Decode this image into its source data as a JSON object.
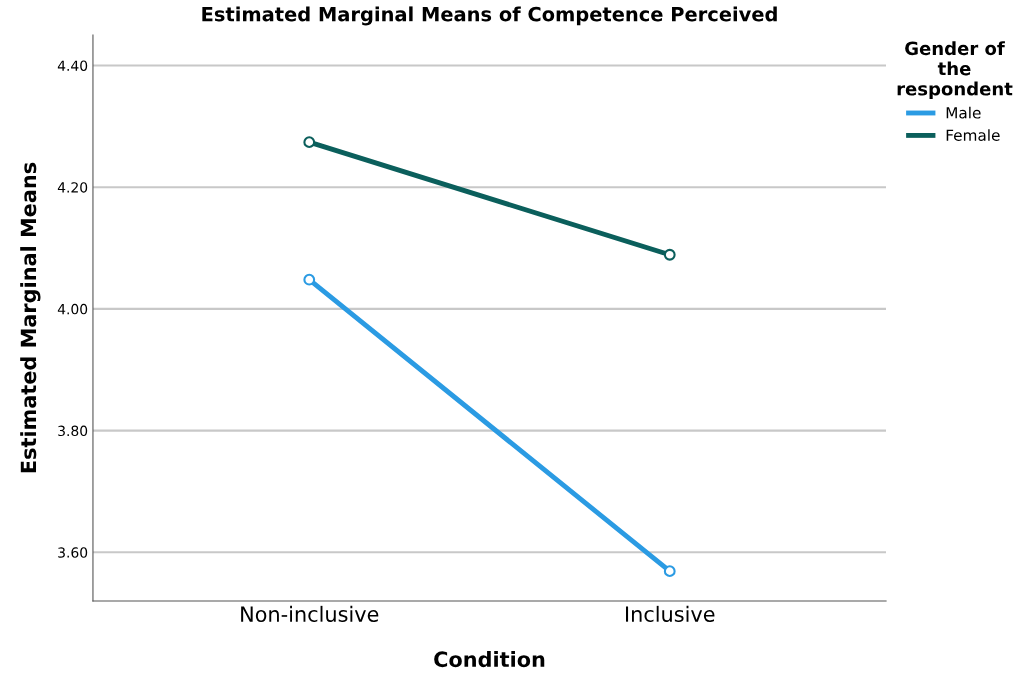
{
  "chart_data": {
    "type": "line",
    "title": "Estimated Marginal Means of Competence Perceived",
    "xlabel": "Condition",
    "ylabel": "Estimated Marginal Means",
    "legend_title": "Gender of\nthe\nrespondent",
    "categories": [
      "Non-inclusive",
      "Inclusive"
    ],
    "series": [
      {
        "name": "Male",
        "color": "#2b9be3",
        "values": [
          4.048,
          3.569
        ]
      },
      {
        "name": "Female",
        "color": "#0b5f5c",
        "values": [
          4.274,
          4.089
        ]
      }
    ],
    "ylim": [
      3.52,
      4.45
    ],
    "yticks": [
      {
        "value": 3.6,
        "label": "3.60"
      },
      {
        "value": 3.8,
        "label": "3.80"
      },
      {
        "value": 4.0,
        "label": "4.00"
      },
      {
        "value": 4.2,
        "label": "4.20"
      },
      {
        "value": 4.4,
        "label": "4.40"
      }
    ],
    "grid": "y",
    "legend": "top right",
    "marker": "circle",
    "line_style": "solid"
  }
}
